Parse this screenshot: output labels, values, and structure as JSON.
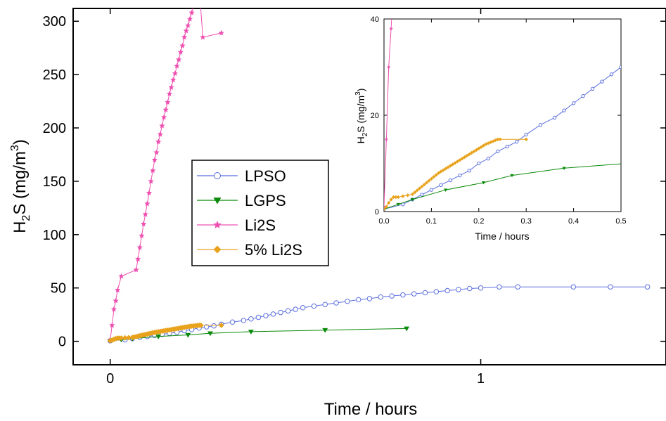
{
  "chart_data": [
    {
      "type": "line",
      "xlabel": "Time / hours",
      "ylabel_main": "H",
      "ylabel_sub": "2",
      "ylabel_rest": "S (mg/m",
      "ylabel_sup": "3",
      "ylabel_end": ")",
      "xlim": [
        -0.1,
        1.5
      ],
      "ylim": [
        -22,
        312
      ],
      "xticks": [
        0,
        1
      ],
      "xtick_labels": [
        "0",
        "1"
      ],
      "yticks": [
        0,
        50,
        100,
        150,
        200,
        250,
        300
      ],
      "ytick_labels": [
        "0",
        "50",
        "100",
        "150",
        "200",
        "250",
        "300"
      ],
      "legend_position": "center-left",
      "series": [
        {
          "name": "LPSO",
          "color": "#5b6fe0",
          "marker": "circle-open",
          "x": [
            0.0,
            0.04,
            0.06,
            0.08,
            0.1,
            0.12,
            0.14,
            0.16,
            0.18,
            0.2,
            0.22,
            0.24,
            0.26,
            0.28,
            0.3,
            0.33,
            0.36,
            0.38,
            0.4,
            0.42,
            0.44,
            0.46,
            0.48,
            0.5,
            0.52,
            0.55,
            0.58,
            0.61,
            0.64,
            0.67,
            0.7,
            0.73,
            0.76,
            0.79,
            0.82,
            0.85,
            0.88,
            0.91,
            0.94,
            0.97,
            1.0,
            1.05,
            1.1,
            1.25,
            1.35,
            1.45
          ],
          "y": [
            0.5,
            1.5,
            2.5,
            3.5,
            4.5,
            5.5,
            6.5,
            7.5,
            8.5,
            10,
            11,
            12.5,
            13.5,
            14.5,
            16,
            18,
            19.5,
            21,
            22.5,
            24,
            25.5,
            27,
            28.5,
            30,
            31.5,
            33,
            34.5,
            36,
            37.5,
            39,
            40,
            41.5,
            42.5,
            43.5,
            44.5,
            45.5,
            46.5,
            47.5,
            48.5,
            49.5,
            50,
            51,
            51,
            51,
            51,
            51
          ]
        },
        {
          "name": "LGPS",
          "color": "#0a8a0a",
          "marker": "triangle-down",
          "x": [
            0.0,
            0.03,
            0.06,
            0.13,
            0.21,
            0.27,
            0.38,
            0.58,
            0.8
          ],
          "y": [
            0.5,
            1.5,
            2.5,
            4.5,
            6,
            7.5,
            9,
            10.5,
            12
          ]
        },
        {
          "name": "Li2S",
          "color": "#ee4fb0",
          "marker": "star",
          "x": [
            0.0,
            0.005,
            0.01,
            0.015,
            0.02,
            0.03,
            0.07,
            0.075,
            0.08,
            0.085,
            0.09,
            0.095,
            0.1,
            0.105,
            0.11,
            0.115,
            0.12,
            0.125,
            0.13,
            0.135,
            0.14,
            0.145,
            0.15,
            0.155,
            0.16,
            0.165,
            0.17,
            0.175,
            0.18,
            0.185,
            0.19,
            0.195,
            0.2,
            0.205,
            0.21,
            0.215,
            0.22,
            0.225,
            0.23,
            0.235,
            0.24,
            0.25,
            0.3
          ],
          "y": [
            1,
            15,
            30,
            38,
            48,
            61,
            67,
            77,
            88,
            99,
            110,
            119,
            129,
            139,
            150,
            160,
            170,
            177,
            187,
            194,
            202,
            210,
            217,
            224,
            232,
            238,
            245,
            251,
            258,
            264,
            271,
            277,
            285,
            291,
            296,
            302,
            308,
            314,
            320,
            326,
            333,
            285,
            289
          ]
        },
        {
          "name": "5% Li2S",
          "color": "#e8a21c",
          "marker": "diamond",
          "x": [
            0.0,
            0.005,
            0.01,
            0.015,
            0.02,
            0.025,
            0.03,
            0.04,
            0.05,
            0.06,
            0.065,
            0.07,
            0.075,
            0.08,
            0.085,
            0.09,
            0.095,
            0.1,
            0.105,
            0.11,
            0.115,
            0.12,
            0.125,
            0.13,
            0.135,
            0.14,
            0.145,
            0.15,
            0.155,
            0.16,
            0.165,
            0.17,
            0.175,
            0.18,
            0.185,
            0.19,
            0.195,
            0.2,
            0.205,
            0.21,
            0.215,
            0.22,
            0.225,
            0.23,
            0.235,
            0.24,
            0.245,
            0.3
          ],
          "y": [
            0.5,
            1,
            1.8,
            2.5,
            3,
            3,
            3,
            3.2,
            3.4,
            3.6,
            4,
            4.4,
            4.8,
            5.2,
            5.6,
            6,
            6.4,
            6.8,
            7.2,
            7.6,
            8.0,
            8.3,
            8.6,
            8.9,
            9.2,
            9.5,
            9.8,
            10.1,
            10.4,
            10.7,
            11,
            11.3,
            11.6,
            11.9,
            12.2,
            12.5,
            12.8,
            13.1,
            13.4,
            13.7,
            14,
            14.2,
            14.4,
            14.6,
            14.8,
            15,
            15,
            15
          ]
        }
      ]
    },
    {
      "type": "line",
      "xlabel": "Time / hours",
      "ylabel_main": "H",
      "ylabel_sub": "2",
      "ylabel_rest": "S (mg/m",
      "ylabel_sup": "3",
      "ylabel_end": ")",
      "xlim": [
        0,
        0.5
      ],
      "ylim": [
        0,
        40
      ],
      "xticks": [
        0.0,
        0.1,
        0.2,
        0.3,
        0.4,
        0.5
      ],
      "xtick_labels": [
        "0.0",
        "0.1",
        "0.2",
        "0.3",
        "0.4",
        "0.5"
      ],
      "yticks": [
        0,
        20,
        40
      ],
      "ytick_labels": [
        "0",
        "20",
        "40"
      ],
      "series_ref": "inset uses same series as main chart, clipped"
    }
  ],
  "legend": [
    "LPSO",
    "LGPS",
    "Li2S",
    "5% Li2S"
  ]
}
